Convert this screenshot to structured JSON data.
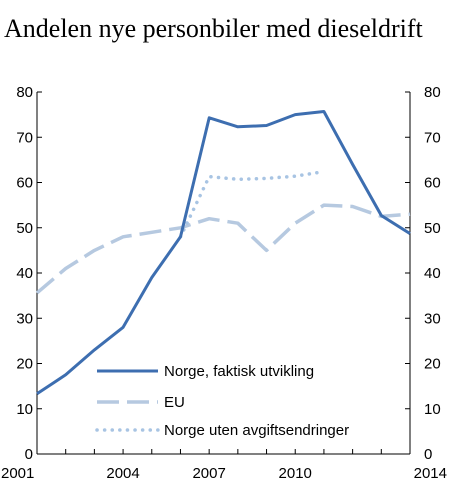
{
  "chart_data": {
    "type": "line",
    "title": "Andelen nye personbiler med dieseldrift",
    "xlabel": "",
    "ylabel": "",
    "x_ticks": [
      2001,
      2004,
      2007,
      2010,
      2014
    ],
    "y_ticks": [
      0,
      10,
      20,
      30,
      40,
      50,
      60,
      70,
      80
    ],
    "xlim": [
      2001,
      2014
    ],
    "ylim": [
      0,
      80
    ],
    "grid": false,
    "legend_position": "bottom-left",
    "series": [
      {
        "name": "Norge, faktisk utvikling",
        "color": "#3d6eb0",
        "style": "solid",
        "x": [
          2001,
          2002,
          2003,
          2004,
          2005,
          2006,
          2007,
          2008,
          2009,
          2010,
          2011,
          2012,
          2013,
          2014
        ],
        "y": [
          13.3,
          17.5,
          23.0,
          28.0,
          39.0,
          48.0,
          74.3,
          72.3,
          72.6,
          75.0,
          75.7,
          64.0,
          52.7,
          48.7
        ]
      },
      {
        "name": "EU",
        "color": "#b6c9e0",
        "style": "dashed",
        "x": [
          2001,
          2002,
          2003,
          2004,
          2005,
          2006,
          2007,
          2008,
          2009,
          2010,
          2011,
          2012,
          2013,
          2014
        ],
        "y": [
          35.6,
          41.0,
          45.0,
          48.0,
          49.0,
          50.0,
          52.0,
          51.0,
          45.0,
          51.0,
          55.0,
          54.7,
          52.5,
          53.0
        ]
      },
      {
        "name": "Norge uten avgiftsendringer",
        "color": "#a8c4e3",
        "style": "dotted",
        "x": [
          2006,
          2007,
          2008,
          2009,
          2010,
          2011
        ],
        "y": [
          48.0,
          61.3,
          60.7,
          60.9,
          61.4,
          62.4
        ]
      }
    ]
  }
}
